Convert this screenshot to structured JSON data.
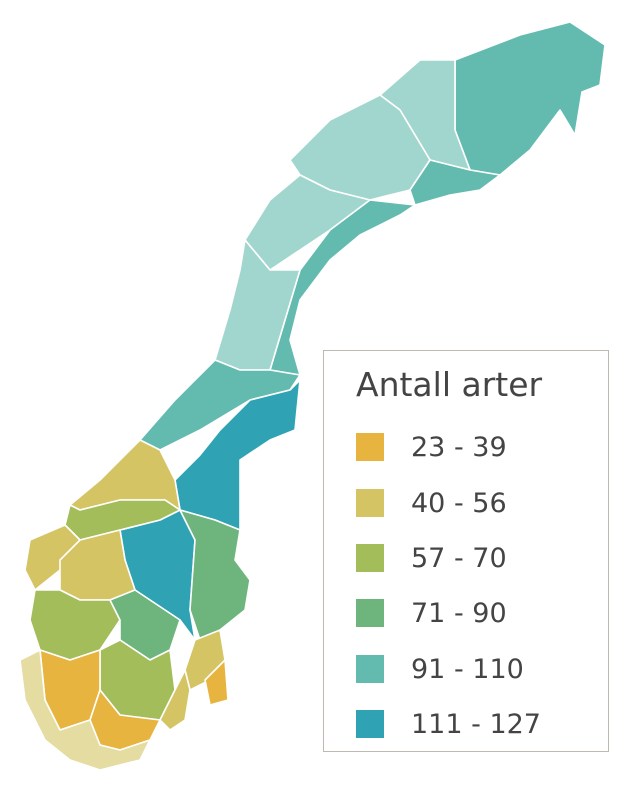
{
  "legend": {
    "title": "Antall arter",
    "ranges": [
      {
        "label": "23 - 39",
        "color": "#e8b440"
      },
      {
        "label": "40 - 56",
        "color": "#d4c464"
      },
      {
        "label": "57 - 70",
        "color": "#a3bd5a"
      },
      {
        "label": "71 - 90",
        "color": "#6db57c"
      },
      {
        "label": "91 - 110",
        "color": "#62bbae"
      },
      {
        "label": "111 - 127",
        "color": "#2fa3b3"
      }
    ]
  }
}
